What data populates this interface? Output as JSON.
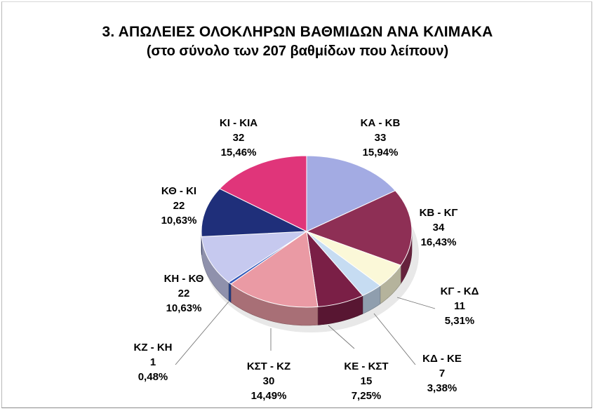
{
  "header": {
    "title": "3. ΑΠΩΛΕΙΕΣ ΟΛΟΚΛΗΡΩΝ ΒΑΘΜΙΔΩΝ ΑΝΑ ΚΛΙΜΑΚΑ",
    "subtitle": "(στο σύνολο των 207 βαθμίδων που λείπουν)"
  },
  "chart_data": {
    "type": "pie",
    "title": "3. ΑΠΩΛΕΙΕΣ ΟΛΟΚΛΗΡΩΝ ΒΑΘΜΙΔΩΝ ΑΝΑ ΚΛΙΜΑΚΑ",
    "subtitle": "(στο σύνολο των 207 βαθμίδων που λείπουν)",
    "slices": [
      {
        "name": "ΚΑ - ΚΒ",
        "value": 33,
        "percent": "15,94%",
        "color": "#a3abe3"
      },
      {
        "name": "ΚΒ - ΚΓ",
        "value": 34,
        "percent": "16,43%",
        "color": "#8e2f55"
      },
      {
        "name": "ΚΓ - ΚΔ",
        "value": 11,
        "percent": "5,31%",
        "color": "#fbf8d8"
      },
      {
        "name": "ΚΔ - ΚΕ",
        "value": 7,
        "percent": "3,38%",
        "color": "#c6dcf2"
      },
      {
        "name": "ΚΕ - ΚΣΤ",
        "value": 15,
        "percent": "7,25%",
        "color": "#7a1f46"
      },
      {
        "name": "ΚΣΤ - ΚΖ",
        "value": 30,
        "percent": "14,49%",
        "color": "#ea9aa4"
      },
      {
        "name": "ΚΖ - ΚΗ",
        "value": 1,
        "percent": "0,48%",
        "color": "#2f56b8"
      },
      {
        "name": "ΚΗ - ΚΘ",
        "value": 22,
        "percent": "10,63%",
        "color": "#c6c9ef"
      },
      {
        "name": "ΚΘ - ΚΙ",
        "value": 22,
        "percent": "10,63%",
        "color": "#1f2f7a"
      },
      {
        "name": "ΚΙ - ΚΙΑ",
        "value": 32,
        "percent": "15,46%",
        "color": "#e0357a"
      }
    ]
  }
}
